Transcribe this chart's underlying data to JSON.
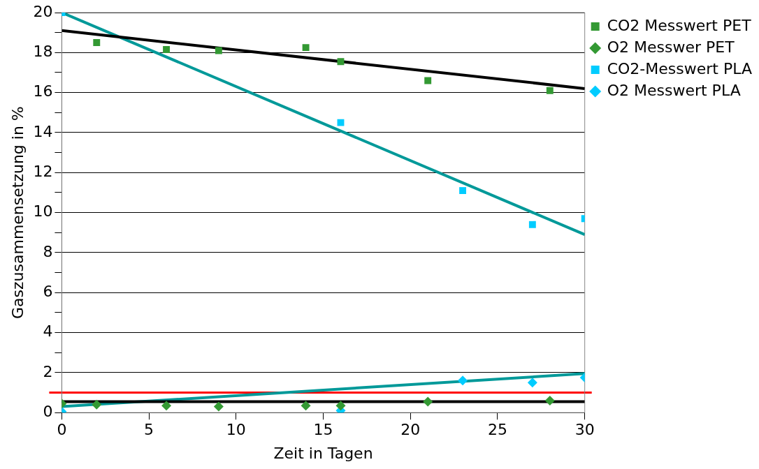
{
  "chart_data": {
    "type": "scatter",
    "xlabel": "Zeit in Tagen",
    "ylabel": "Gaszusammensetzung in %",
    "xlim": [
      0,
      30
    ],
    "xticks": [
      0,
      5,
      10,
      15,
      20,
      25,
      30
    ],
    "ylim": [
      0,
      20
    ],
    "yticks": [
      0,
      {
        "value": 1,
        "label": null
      },
      2,
      {
        "value": 3,
        "label": null
      },
      4,
      {
        "value": 5,
        "label": null
      },
      6,
      {
        "value": 7,
        "label": null
      },
      8,
      {
        "value": 9,
        "label": null
      },
      10,
      {
        "value": 11,
        "label": null
      },
      12,
      {
        "value": 13,
        "label": null
      },
      14,
      {
        "value": 15,
        "label": null
      },
      16,
      {
        "value": 17,
        "label": null
      },
      18,
      {
        "value": 19,
        "label": null
      },
      20
    ],
    "grid": "y",
    "legend": "top right",
    "ref_lines": [
      {
        "axis": "y",
        "value": 1,
        "color": "#ff0000"
      }
    ],
    "series": [
      {
        "name": "CO2 Messwert PET",
        "color": "#339933",
        "marker": "square",
        "x": [
          2,
          6,
          9,
          14,
          16,
          21,
          28
        ],
        "values": [
          18.5,
          18.15,
          18.1,
          18.25,
          17.55,
          16.6,
          16.1
        ]
      },
      {
        "name": "O2 Messwer PET",
        "color": "#339933",
        "marker": "diamond",
        "x": [
          0,
          2,
          6,
          9,
          14,
          16,
          21,
          28
        ],
        "values": [
          0.45,
          0.4,
          0.35,
          0.3,
          0.35,
          0.35,
          0.55,
          0.6
        ]
      },
      {
        "name": "CO2-Messwert PLA",
        "color": "#00ccff",
        "marker": "square",
        "x": [
          0,
          16,
          23,
          27,
          30
        ],
        "values": [
          20,
          14.5,
          11.1,
          9.4,
          9.7
        ]
      },
      {
        "name": "O2 Messwert PLA",
        "color": "#00ccff",
        "marker": "diamond",
        "x": [
          0,
          16,
          23,
          27,
          30
        ],
        "values": [
          0.05,
          0.1,
          1.6,
          1.5,
          1.75
        ]
      },
      {
        "type": "line",
        "color": "#000000",
        "marker": "none",
        "x": [
          0,
          30
        ],
        "values": [
          19.1,
          16.2
        ]
      },
      {
        "type": "line",
        "color": "#009999",
        "marker": "none",
        "x": [
          0,
          30
        ],
        "values": [
          20,
          8.9
        ]
      },
      {
        "type": "line",
        "color": "#000000",
        "marker": "none",
        "x": [
          0,
          30
        ],
        "values": [
          0.55,
          0.55
        ]
      },
      {
        "type": "line",
        "color": "#009999",
        "marker": "none",
        "x": [
          0,
          30
        ],
        "values": [
          0.3,
          1.95
        ]
      }
    ]
  }
}
